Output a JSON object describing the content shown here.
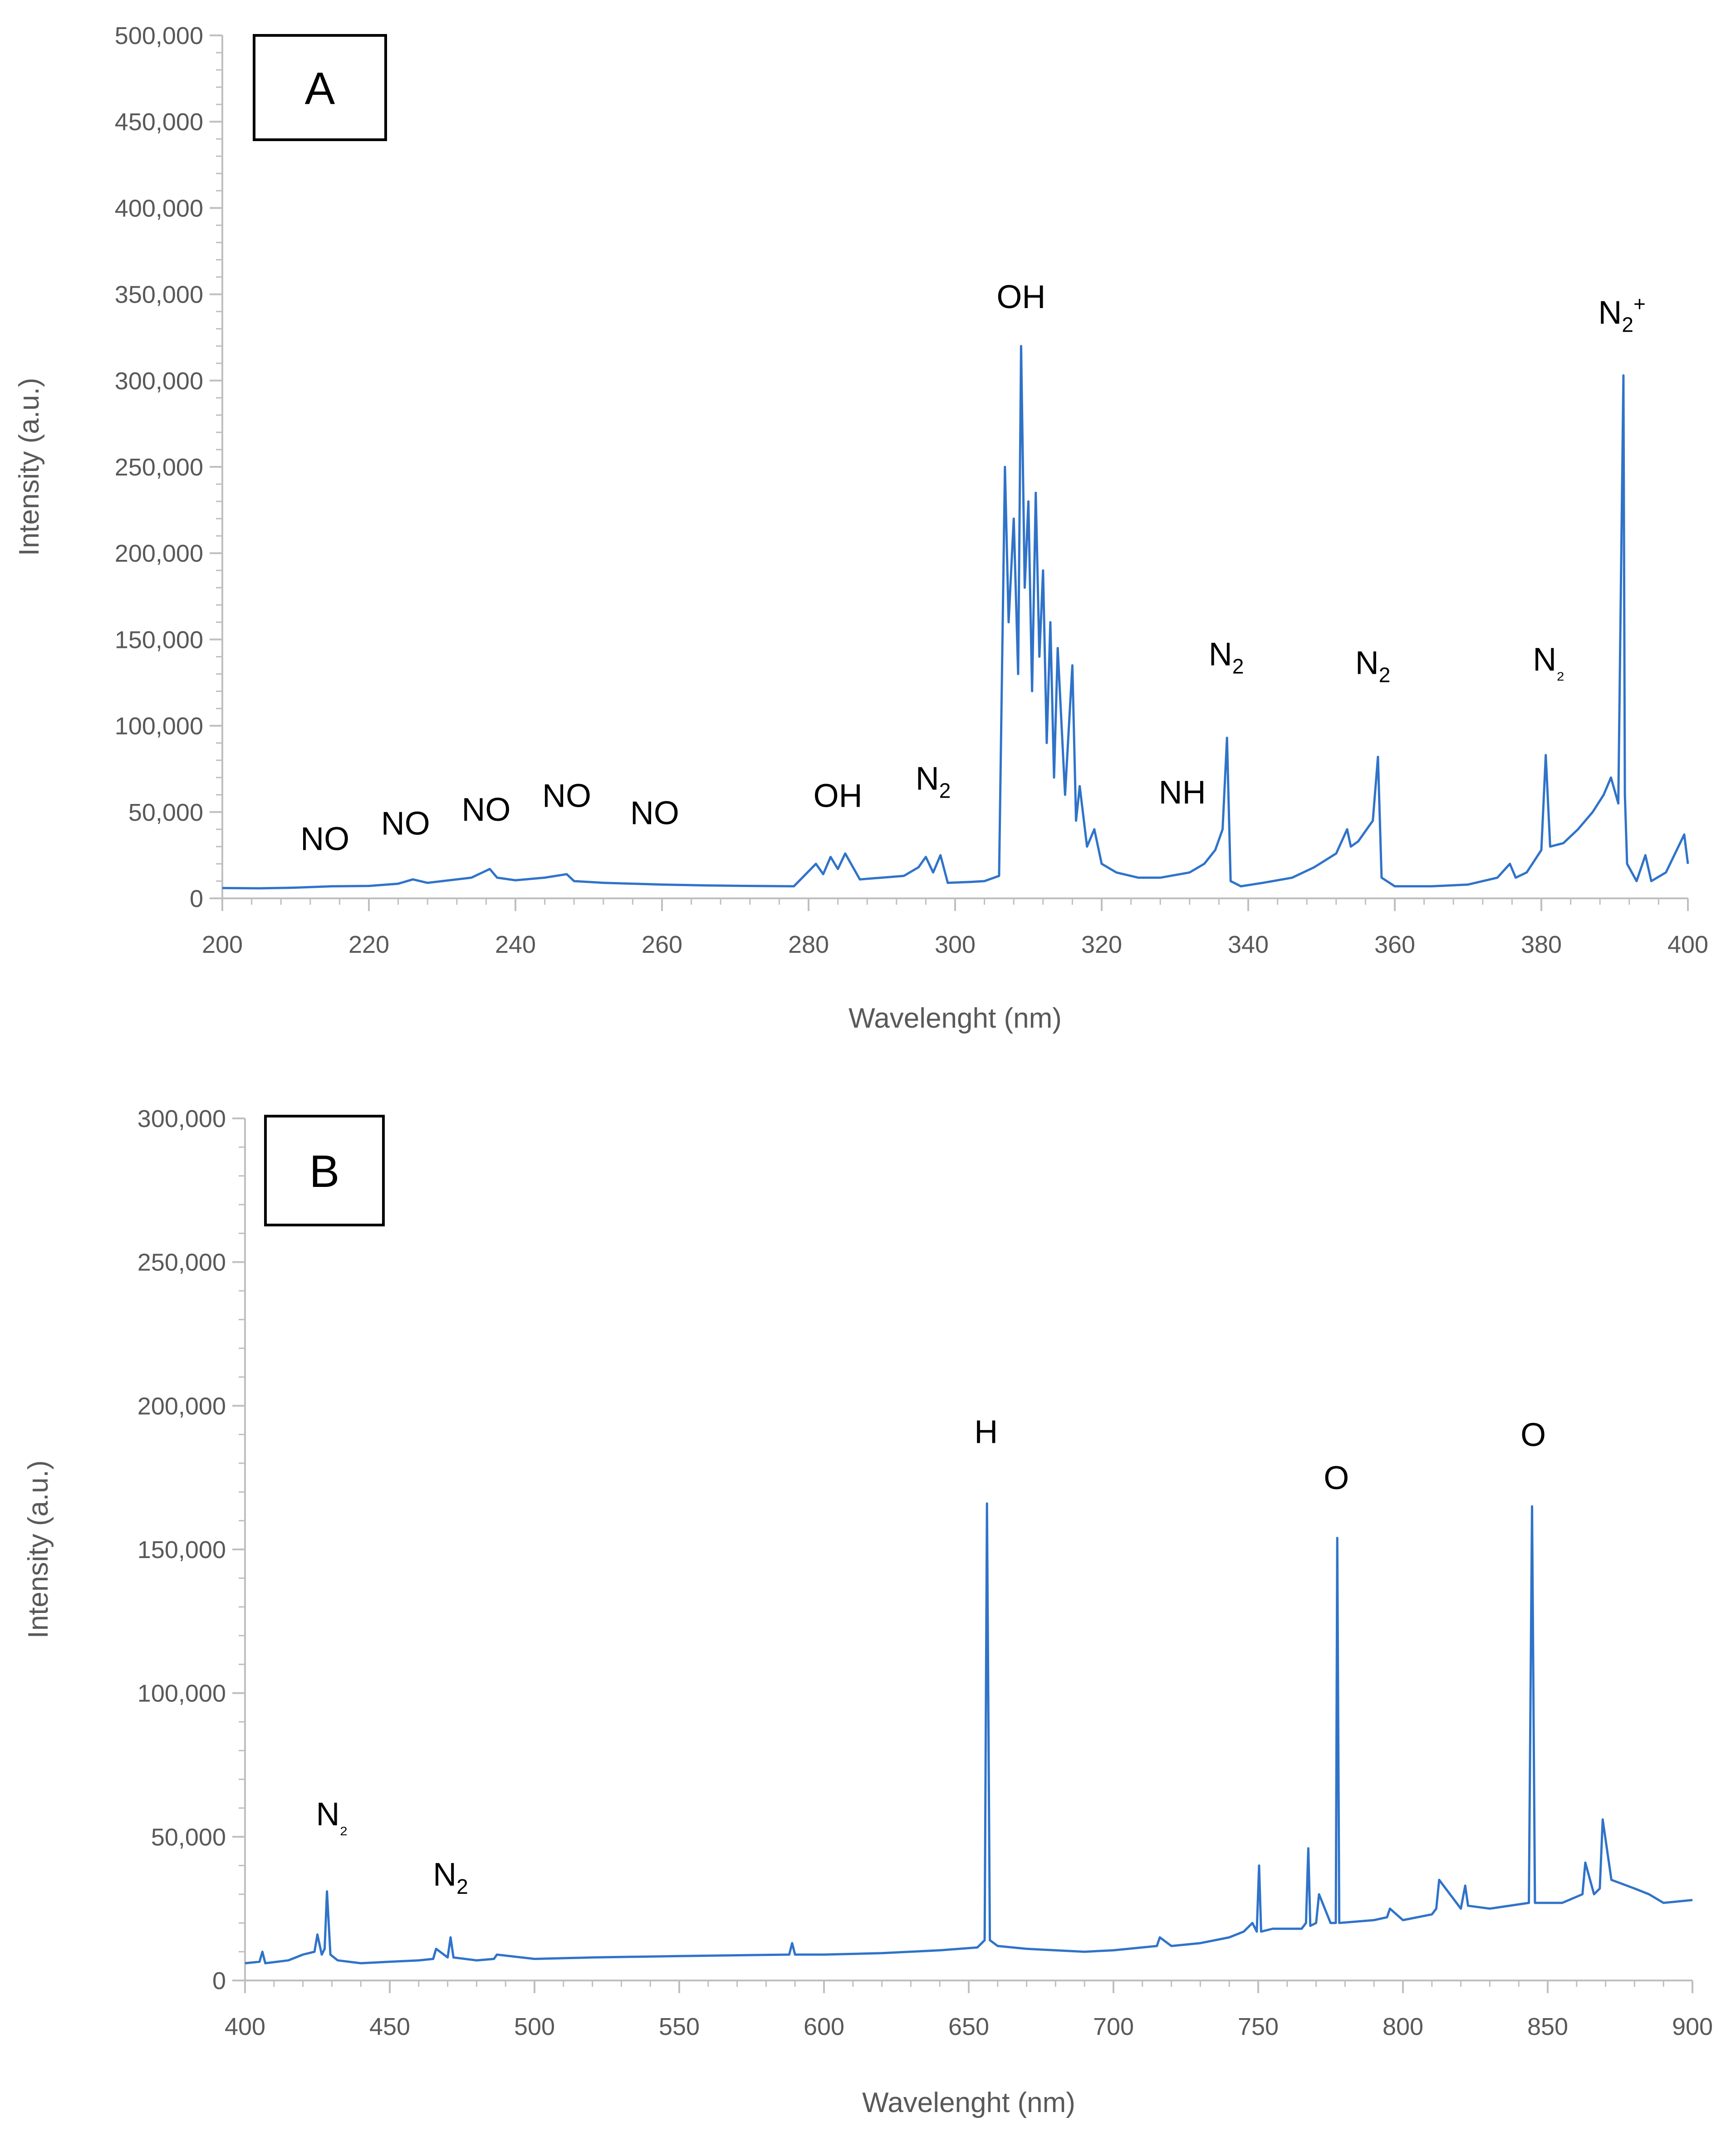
{
  "chart_data": [
    {
      "panel": "A",
      "type": "line",
      "xlabel": "Wavelenght (nm)",
      "ylabel": "Intensity (a.u.)",
      "xlim": [
        200,
        400
      ],
      "ylim": [
        0,
        500000
      ],
      "x_ticks": [
        200,
        220,
        240,
        260,
        280,
        300,
        320,
        340,
        360,
        380,
        400
      ],
      "x_tick_labels": [
        "200",
        "220",
        "240",
        "260",
        "280",
        "300",
        "320",
        "340",
        "360",
        "380",
        "400"
      ],
      "y_ticks": [
        0,
        50000,
        100000,
        150000,
        200000,
        250000,
        300000,
        350000,
        400000,
        450000,
        500000
      ],
      "y_tick_labels": [
        "0",
        "50,000",
        "100,000",
        "150,000",
        "200,000",
        "250,000",
        "300,000",
        "350,000",
        "400,000",
        "450,000",
        "500,000"
      ],
      "grid": false,
      "line_color": "#2f73c9",
      "series": [
        {
          "x": [
            200,
            205,
            210,
            215,
            220,
            224,
            226,
            228,
            230,
            234,
            236.5,
            237.5,
            240,
            244,
            247,
            248,
            252,
            256,
            260,
            266,
            272,
            278,
            281,
            282,
            283,
            284,
            285,
            287,
            290,
            293,
            295,
            296,
            297,
            298,
            299,
            302,
            304,
            306,
            306.8,
            307.3,
            308,
            308.6,
            309,
            309.5,
            310,
            310.5,
            311,
            311.5,
            312,
            312.5,
            313,
            313.5,
            314,
            315,
            316,
            316.5,
            317,
            318,
            319,
            320,
            322,
            325,
            328,
            332,
            334,
            335.5,
            336.5,
            337.1,
            337.6,
            339,
            342,
            346,
            349,
            352,
            353.5,
            354,
            355,
            357,
            357.7,
            358.2,
            360,
            365,
            370,
            374,
            375.7,
            376.5,
            378,
            380,
            380.6,
            381.2,
            383,
            385,
            387,
            388.5,
            389.5,
            390.5,
            391.2,
            391.4,
            391.7,
            393,
            394.2,
            395,
            397,
            399.5,
            400
          ],
          "y": [
            6000,
            5800,
            6200,
            7000,
            7200,
            8500,
            11000,
            9000,
            10000,
            12000,
            17000,
            12000,
            10500,
            12000,
            14000,
            10000,
            9000,
            8500,
            8000,
            7500,
            7200,
            7000,
            20000,
            14000,
            24000,
            17000,
            26000,
            11000,
            12000,
            13000,
            18000,
            24000,
            15000,
            25000,
            9000,
            9500,
            10000,
            13000,
            250000,
            160000,
            220000,
            130000,
            320000,
            180000,
            230000,
            120000,
            235000,
            140000,
            190000,
            90000,
            160000,
            70000,
            145000,
            60000,
            135000,
            45000,
            65000,
            30000,
            40000,
            20000,
            15000,
            12000,
            12000,
            15000,
            20000,
            28000,
            40000,
            93000,
            10000,
            7000,
            9000,
            12000,
            18000,
            26000,
            40000,
            30000,
            33000,
            45000,
            82000,
            12000,
            7000,
            7000,
            8000,
            12000,
            20000,
            12000,
            15000,
            28000,
            83000,
            30000,
            32000,
            40000,
            50000,
            60000,
            70000,
            55000,
            303000,
            60000,
            20000,
            10000,
            25000,
            10000,
            15000,
            37000,
            20000
          ]
        }
      ],
      "annotations": [
        {
          "text": "NO",
          "sub": "",
          "sup": "",
          "x": 214,
          "y": 28000
        },
        {
          "text": "NO",
          "sub": "",
          "sup": "",
          "x": 225,
          "y": 37000
        },
        {
          "text": "NO",
          "sub": "",
          "sup": "",
          "x": 236,
          "y": 45000
        },
        {
          "text": "NO",
          "sub": "",
          "sup": "",
          "x": 247,
          "y": 53000
        },
        {
          "text": "NO",
          "sub": "",
          "sup": "",
          "x": 259,
          "y": 43000
        },
        {
          "text": "OH",
          "sub": "",
          "sup": "",
          "x": 284,
          "y": 53000
        },
        {
          "text": "N",
          "sub": "2",
          "sup": "",
          "x": 297,
          "y": 63000
        },
        {
          "text": "OH",
          "sub": "",
          "sup": "",
          "x": 309,
          "y": 342000
        },
        {
          "text": "NH",
          "sub": "",
          "sup": "",
          "x": 331,
          "y": 55000
        },
        {
          "text": "N",
          "sub": "2",
          "sup": "",
          "x": 337,
          "y": 135000
        },
        {
          "text": "N",
          "sub": "2",
          "sup": "",
          "x": 357,
          "y": 130000
        },
        {
          "text": "N",
          "sub": "₂",
          "sup": "",
          "x": 381,
          "y": 132000
        },
        {
          "text": "N",
          "sub": "2",
          "sup": "+",
          "x": 391,
          "y": 333000
        }
      ]
    },
    {
      "panel": "B",
      "type": "line",
      "xlabel": "Wavelenght (nm)",
      "ylabel": "Intensity (a.u.)",
      "xlim": [
        400,
        900
      ],
      "ylim": [
        0,
        300000
      ],
      "x_ticks": [
        400,
        450,
        500,
        550,
        600,
        650,
        700,
        750,
        800,
        850,
        900
      ],
      "x_tick_labels": [
        "400",
        "450",
        "500",
        "550",
        "600",
        "650",
        "700",
        "750",
        "800",
        "850",
        "900"
      ],
      "y_ticks": [
        0,
        50000,
        100000,
        150000,
        200000,
        250000,
        300000
      ],
      "y_tick_labels": [
        "0",
        "50,000",
        "100,000",
        "150,000",
        "200,000",
        "250,000",
        "300,000"
      ],
      "grid": false,
      "line_color": "#2f73c9",
      "series": [
        {
          "x": [
            400,
            405,
            406,
            407,
            415,
            420,
            424,
            425,
            426.5,
            427.5,
            428.3,
            429.5,
            432,
            440,
            450,
            460,
            465,
            466,
            470,
            471,
            472,
            480,
            486,
            487,
            500,
            520,
            550,
            588,
            589,
            590,
            600,
            620,
            640,
            653,
            655.5,
            656.3,
            657.3,
            660,
            670,
            690,
            700,
            715,
            716,
            720,
            730,
            740,
            745,
            748,
            749.5,
            750.3,
            751,
            755,
            765,
            766.5,
            767.3,
            768,
            770,
            771,
            775,
            776.8,
            777.3,
            778,
            790,
            794.5,
            795.5,
            800,
            810,
            811.5,
            812.5,
            820,
            821.5,
            822.5,
            830,
            843.5,
            844.6,
            845.6,
            855,
            862,
            863,
            866,
            868,
            869,
            872,
            880,
            885,
            890,
            900
          ],
          "y": [
            6000,
            6500,
            10000,
            6000,
            7000,
            9000,
            10000,
            16000,
            9000,
            11000,
            31000,
            9000,
            7000,
            6000,
            6500,
            7000,
            7500,
            11000,
            8000,
            15000,
            8000,
            7000,
            7500,
            9000,
            7500,
            8000,
            8500,
            9000,
            13000,
            9000,
            9000,
            9500,
            10500,
            11500,
            14000,
            166000,
            14000,
            12000,
            11000,
            10000,
            10500,
            12000,
            15000,
            12000,
            13000,
            15000,
            17000,
            20000,
            17000,
            40000,
            17000,
            18000,
            18000,
            20000,
            46000,
            19000,
            20000,
            30000,
            20000,
            20000,
            154000,
            20000,
            21000,
            22000,
            25000,
            21000,
            23000,
            25000,
            35000,
            25000,
            33000,
            26000,
            25000,
            27000,
            165000,
            27000,
            27000,
            30000,
            41000,
            30000,
            32000,
            56000,
            35000,
            32000,
            30000,
            27000,
            28000
          ]
        }
      ],
      "annotations": [
        {
          "text": "N",
          "sub": "₂",
          "sup": "",
          "x": 430,
          "y": 54000
        },
        {
          "text": "N",
          "sub": "2",
          "sup": "",
          "x": 471,
          "y": 33000
        },
        {
          "text": "H",
          "sub": "",
          "sup": "",
          "x": 656,
          "y": 187000
        },
        {
          "text": "O",
          "sub": "",
          "sup": "",
          "x": 777,
          "y": 171000
        },
        {
          "text": "O",
          "sub": "",
          "sup": "",
          "x": 845,
          "y": 186000
        }
      ]
    }
  ]
}
